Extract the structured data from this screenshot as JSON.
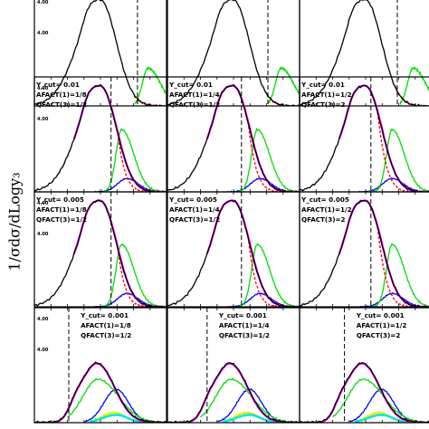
{
  "figure": {
    "ylabel": "1/σdσ/dLogy₃",
    "colors": {
      "frame": "#000000",
      "total": "#000000",
      "fit": "#ff00ff",
      "red": "#ff0000",
      "green": "#00dd00",
      "blue": "#0000ff",
      "cyan": "#00e5e5",
      "yellow": "#eeee00"
    }
  },
  "chart_data": [
    {
      "type": "line",
      "row": 0,
      "col": 0,
      "labels": [],
      "yticks": [
        "4.00",
        "4.00"
      ],
      "series": [
        "total",
        "red",
        "green"
      ]
    },
    {
      "type": "line",
      "row": 0,
      "col": 1,
      "labels": [],
      "yticks": [],
      "series": [
        "total",
        "red",
        "green"
      ]
    },
    {
      "type": "line",
      "row": 0,
      "col": 2,
      "labels": [],
      "yticks": [],
      "series": [
        "total",
        "red",
        "green"
      ]
    },
    {
      "type": "line",
      "row": 1,
      "col": 0,
      "labels": [
        "Y_cut= 0.01",
        "AFACT(1)=1/8",
        "QFACT(3)=1/2"
      ],
      "yticks": [
        "4.00",
        "4.00"
      ],
      "series": [
        "total",
        "fit",
        "red",
        "green",
        "blue"
      ]
    },
    {
      "type": "line",
      "row": 1,
      "col": 1,
      "labels": [
        "Y_cut= 0.01",
        "AFACT(1)=1/4",
        "QFACT(3)=1/2"
      ],
      "yticks": [],
      "series": [
        "total",
        "fit",
        "red",
        "green",
        "blue"
      ]
    },
    {
      "type": "line",
      "row": 1,
      "col": 2,
      "labels": [
        "Y_cut= 0.01",
        "AFACT(1)=1/2",
        "QFACT(3)=2"
      ],
      "yticks": [],
      "series": [
        "total",
        "fit",
        "red",
        "green",
        "blue"
      ]
    },
    {
      "type": "line",
      "row": 2,
      "col": 0,
      "labels": [
        "Y_cut= 0.005",
        "AFACT(1)=1/8",
        "QFACT(3)=1/2"
      ],
      "yticks": [
        "4.00",
        "4.00"
      ],
      "series": [
        "total",
        "fit",
        "red",
        "green",
        "blue"
      ]
    },
    {
      "type": "line",
      "row": 2,
      "col": 1,
      "labels": [
        "Y_cut= 0.005",
        "AFACT(1)=1/4",
        "QFACT(3)=1/2"
      ],
      "yticks": [],
      "series": [
        "total",
        "fit",
        "red",
        "green",
        "blue"
      ]
    },
    {
      "type": "line",
      "row": 2,
      "col": 2,
      "labels": [
        "Y_cut= 0.005",
        "AFACT(1)=1/2",
        "QFACT(3)=2"
      ],
      "yticks": [],
      "series": [
        "total",
        "fit",
        "red",
        "green",
        "blue"
      ]
    },
    {
      "type": "line",
      "row": 3,
      "col": 0,
      "labels": [
        "Y_cut= 0.001",
        "AFACT(1)=1/8",
        "QFACT(3)=1/2"
      ],
      "yticks": [
        "4.00",
        "4.00"
      ],
      "series": [
        "total",
        "fit",
        "green",
        "blue",
        "yellow",
        "cyan"
      ]
    },
    {
      "type": "line",
      "row": 3,
      "col": 1,
      "labels": [
        "Y_cut= 0.001",
        "AFACT(1)=1/4",
        "QFACT(3)=1/2"
      ],
      "yticks": [],
      "series": [
        "total",
        "fit",
        "green",
        "blue",
        "yellow",
        "cyan"
      ]
    },
    {
      "type": "line",
      "row": 3,
      "col": 2,
      "labels": [
        "Y_cut= 0.001",
        "AFACT(1)=1/2",
        "QFACT(3)=2"
      ],
      "yticks": [],
      "series": [
        "total",
        "fit",
        "green",
        "blue",
        "yellow",
        "cyan"
      ]
    }
  ]
}
